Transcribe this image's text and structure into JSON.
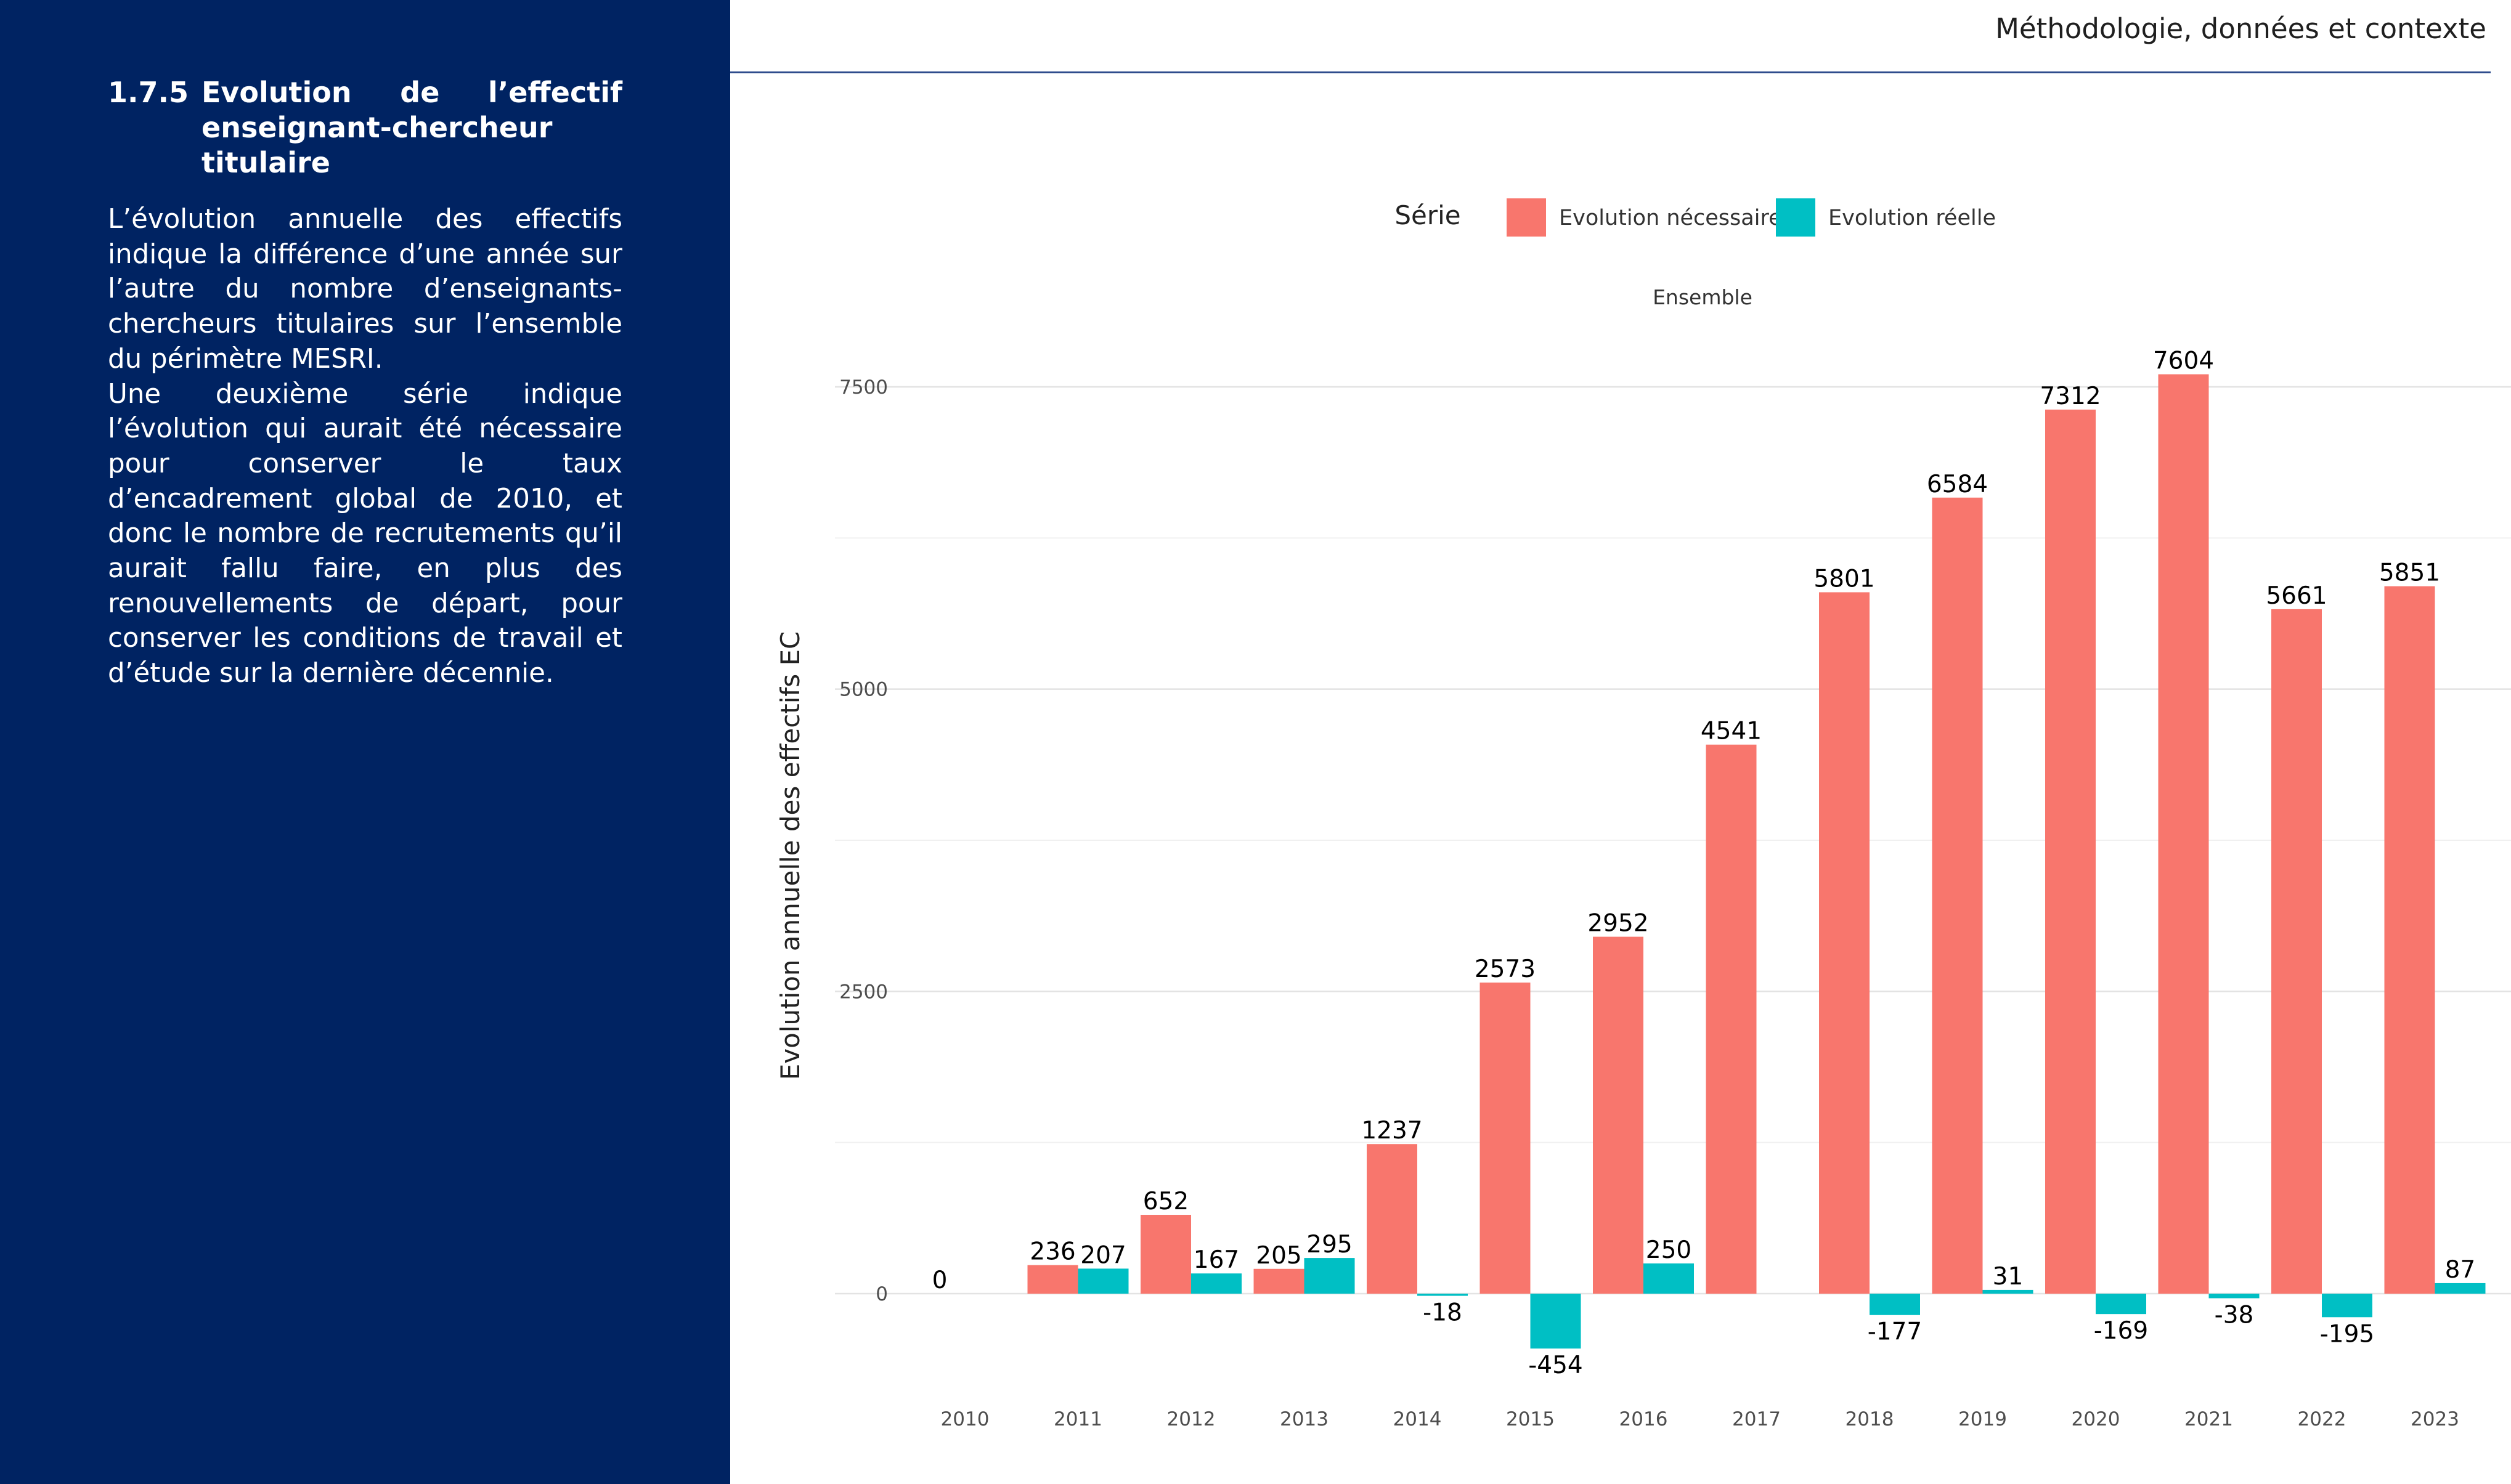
{
  "header": {
    "title": "Méthodologie, données et contexte"
  },
  "section": {
    "number": "1.7.5",
    "title": "Evolution de l’effectif enseignant-chercheur titulaire",
    "paragraphs": [
      "L’évolution annuelle des effectifs indique la différence d’une année sur l’autre du nombre d’enseignants-chercheurs titulaires sur l’ensemble du périmètre MESRI.",
      "Une deuxième série indique l’évolution qui aurait été nécessaire pour conserver le taux d’encadrement global de 2010, et donc le nombre de recrutements qu’il aurait fallu faire, en plus des renouvel­lements de départ, pour conserver les conditions de travail et d’étude sur la der­nière décennie."
    ]
  },
  "chart_data": {
    "type": "bar",
    "legend_title": "Série",
    "legend_position": "top",
    "facet_label": "Ensemble",
    "xlabel": "",
    "ylabel": "Evolution annuelle des effectifs EC",
    "ylim": [
      -650,
      8200
    ],
    "y_ticks": [
      0,
      2500,
      5000,
      7500
    ],
    "grid": true,
    "categories": [
      "2010",
      "2011",
      "2012",
      "2013",
      "2014",
      "2015",
      "2016",
      "2017",
      "2018",
      "2019",
      "2020",
      "2021",
      "2022",
      "2023"
    ],
    "series": [
      {
        "name": "Evolution nécessaire",
        "color": "#F8766D",
        "values": [
          0,
          236,
          652,
          205,
          1237,
          2573,
          2952,
          4541,
          5801,
          6584,
          7312,
          7604,
          5661,
          5851
        ],
        "labels": [
          "0",
          "236",
          "652",
          "205",
          "1237",
          "2573",
          "2952",
          "4541",
          "5801",
          "6584",
          "7312",
          "7604",
          "5661",
          "5851"
        ]
      },
      {
        "name": "Evolution réelle",
        "color": "#00BFC4",
        "values": [
          null,
          207,
          167,
          295,
          -18,
          -454,
          250,
          null,
          -177,
          31,
          -169,
          -38,
          -195,
          87
        ],
        "labels": [
          "",
          "207",
          "167",
          "295",
          "-18",
          "-454",
          "250",
          "",
          "-177",
          "31",
          "-169",
          "-38",
          "-195",
          "87"
        ]
      }
    ]
  }
}
